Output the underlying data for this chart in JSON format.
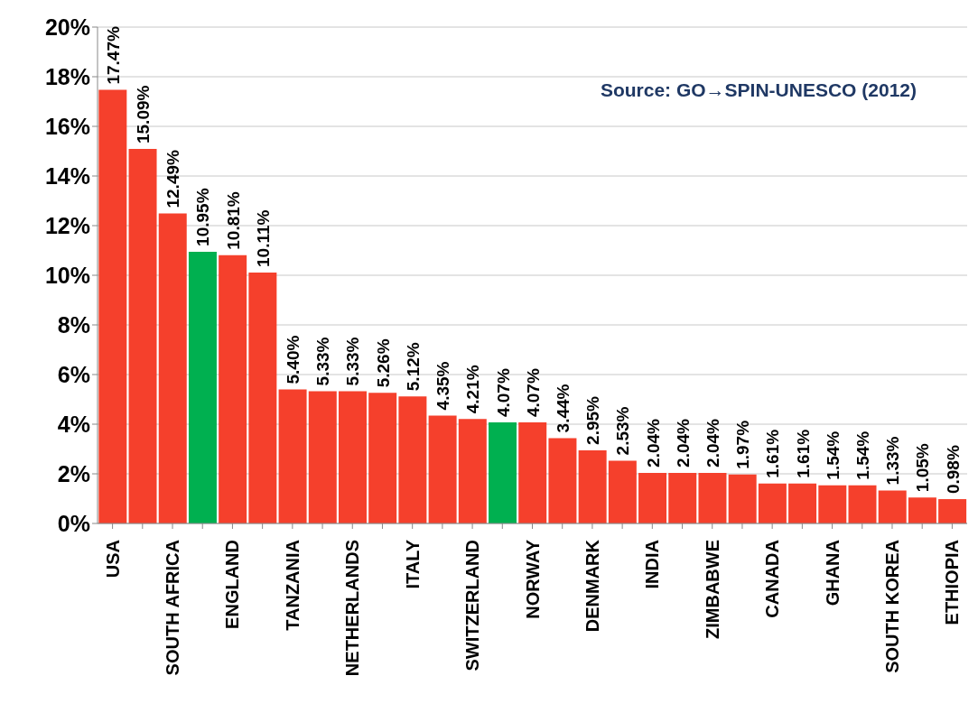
{
  "chart_data": {
    "type": "bar",
    "categories": [
      "USA",
      null,
      "SOUTH AFRICA",
      null,
      "ENGLAND",
      null,
      "TANZANIA",
      null,
      "NETHERLANDS",
      null,
      "ITALY",
      null,
      "SWITZERLAND",
      null,
      "NORWAY",
      null,
      "DENMARK",
      null,
      "INDIA",
      null,
      "ZIMBABWE",
      null,
      "CANADA",
      null,
      "GHANA",
      null,
      "SOUTH KOREA",
      null,
      "ETHIOPIA"
    ],
    "values": [
      17.47,
      15.09,
      12.49,
      10.95,
      10.81,
      10.11,
      5.4,
      5.33,
      5.33,
      5.26,
      5.12,
      4.35,
      4.21,
      4.07,
      4.07,
      3.44,
      2.95,
      2.53,
      2.04,
      2.04,
      2.04,
      1.97,
      1.61,
      1.61,
      1.54,
      1.54,
      1.33,
      1.05,
      0.98
    ],
    "value_labels": [
      "17.47%",
      "15.09%",
      "12.49%",
      "10.95%",
      "10.81%",
      "10.11%",
      "5.40%",
      "5.33%",
      "5.33%",
      "5.26%",
      "5.12%",
      "4.35%",
      "4.21%",
      "4.07%",
      "4.07%",
      "3.44%",
      "2.95%",
      "2.53%",
      "2.04%",
      "2.04%",
      "2.04%",
      "1.97%",
      "1.61%",
      "1.61%",
      "1.54%",
      "1.54%",
      "1.33%",
      "1.05%",
      "0.98%"
    ],
    "colors": [
      "#f5402c",
      "#f5402c",
      "#f5402c",
      "#00b050",
      "#f5402c",
      "#f5402c",
      "#f5402c",
      "#f5402c",
      "#f5402c",
      "#f5402c",
      "#f5402c",
      "#f5402c",
      "#f5402c",
      "#00b050",
      "#f5402c",
      "#f5402c",
      "#f5402c",
      "#f5402c",
      "#f5402c",
      "#f5402c",
      "#f5402c",
      "#f5402c",
      "#f5402c",
      "#f5402c",
      "#f5402c",
      "#f5402c",
      "#f5402c",
      "#f5402c",
      "#f5402c"
    ],
    "ylim": [
      0,
      20
    ],
    "yticks": [
      {
        "value": 0,
        "label": "0%"
      },
      {
        "value": 2,
        "label": "2%"
      },
      {
        "value": 4,
        "label": "4%"
      },
      {
        "value": 6,
        "label": "6%"
      },
      {
        "value": 8,
        "label": "8%"
      },
      {
        "value": 10,
        "label": "10%"
      },
      {
        "value": 12,
        "label": "12%"
      },
      {
        "value": 14,
        "label": "14%"
      },
      {
        "value": 16,
        "label": "16%"
      },
      {
        "value": 18,
        "label": "18%"
      },
      {
        "value": 20,
        "label": "20%"
      }
    ],
    "grid": "y",
    "annotations": [
      "Source: GO→SPIN-UNESCO (2012)"
    ]
  }
}
